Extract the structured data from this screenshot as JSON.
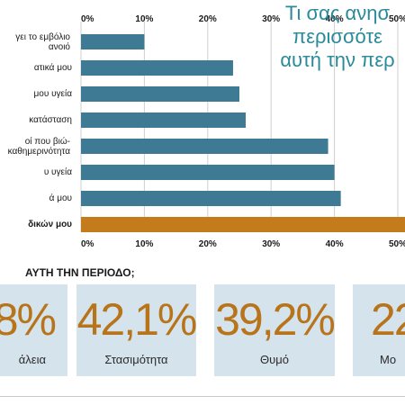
{
  "title": {
    "lines": [
      "Τι σας ανησ",
      "περισσότε",
      "αυτή την περ"
    ]
  },
  "chart_data": {
    "type": "bar",
    "orientation": "horizontal",
    "categories": [
      "γει το εμβόλιο ανοιό",
      "ατικά μου",
      "μου υγεία",
      "κατάσταση",
      "οί που βιώ- καθημερινότητα",
      "υ υγεία",
      "ά μου",
      "δικών μου"
    ],
    "values": [
      10,
      24,
      25,
      26,
      39,
      40,
      41,
      52
    ],
    "highlight_index": 7,
    "bar_color": "#3e7a93",
    "highlight_color": "#c47b1c",
    "xlim": [
      0,
      50
    ],
    "tick_labels": [
      "0%",
      "10%",
      "20%",
      "30%",
      "40%",
      "50%"
    ],
    "grid": true
  },
  "question": "ΑΥΤΗ ΤΗΝ ΠΕΡΙΟΔΟ;",
  "stats": [
    {
      "value": "8%",
      "label": "άλεια"
    },
    {
      "value": "42,1%",
      "label": "Στασιμότητα"
    },
    {
      "value": "39,2%",
      "label": "Θυμό"
    },
    {
      "value": "22",
      "label": "Μο"
    }
  ],
  "colors": {
    "title": "#2a8a9a",
    "stat_value": "#b8741b",
    "card_bg": "#d5e3ec"
  }
}
